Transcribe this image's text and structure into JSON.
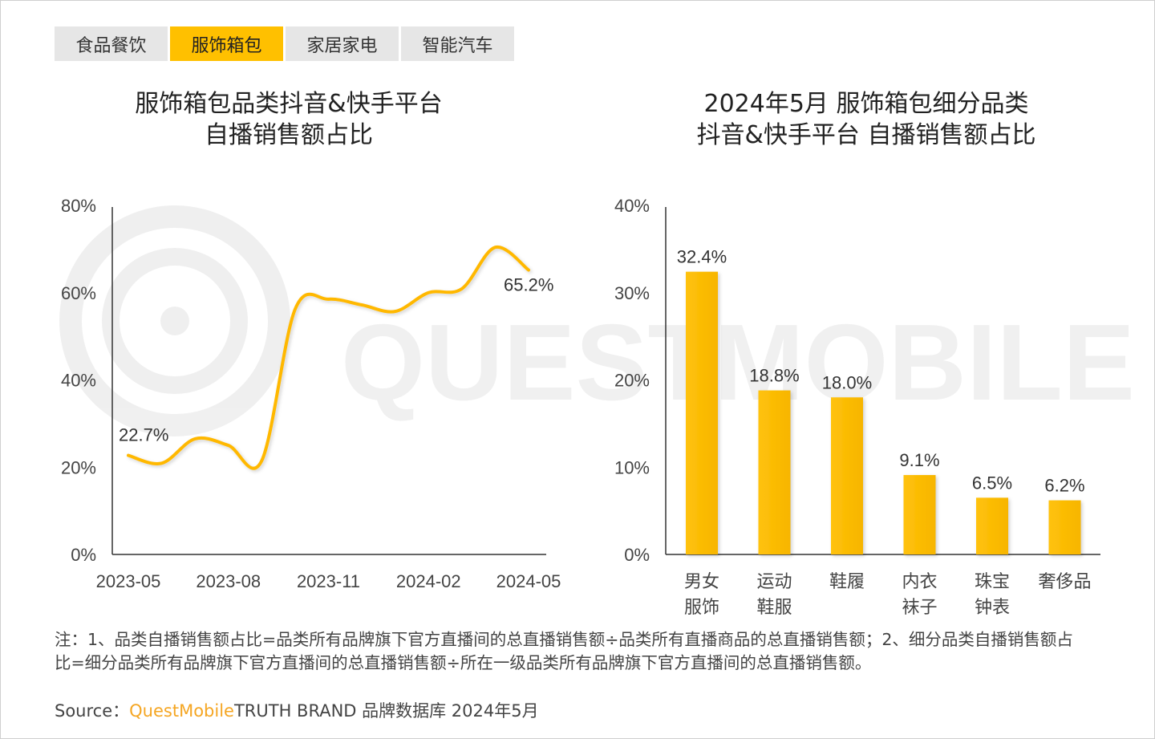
{
  "tabs": [
    {
      "label": "食品餐饮",
      "active": false
    },
    {
      "label": "服饰箱包",
      "active": true
    },
    {
      "label": "家居家电",
      "active": false
    },
    {
      "label": "智能汽车",
      "active": false
    }
  ],
  "colors": {
    "accent": "#ffc000",
    "tab_bg": "#e6e6e6",
    "line": "#ffb800",
    "brand": "#f5a623"
  },
  "watermark": "QUESTMOBILE",
  "chart_data": [
    {
      "type": "line",
      "title": "服饰箱包品类抖音&快手平台\n自播销售额占比",
      "title_lines": [
        "服饰箱包品类抖音&快手平台",
        "自播销售额占比"
      ],
      "x": [
        "2023-05",
        "2023-06",
        "2023-07",
        "2023-08",
        "2023-09",
        "2023-10",
        "2023-11",
        "2023-12",
        "2024-01",
        "2024-02",
        "2024-03",
        "2024-04",
        "2024-05"
      ],
      "x_tick_labels": [
        "2023-05",
        "2023-08",
        "2023-11",
        "2024-02",
        "2024-05"
      ],
      "series": [
        {
          "values": [
            22.7,
            20.9,
            26.5,
            25.0,
            21.5,
            56.2,
            58.5,
            57.2,
            55.7,
            60.0,
            60.9,
            70.4,
            65.2
          ]
        }
      ],
      "data_labels": [
        {
          "x": "2023-05",
          "label": "22.7%"
        },
        {
          "x": "2024-05",
          "label": "65.2%"
        }
      ],
      "ylim": [
        0,
        80
      ],
      "y_tick_labels": [
        "0%",
        "20%",
        "40%",
        "60%",
        "80%"
      ],
      "grid": false
    },
    {
      "type": "bar",
      "title_lines": [
        "2024年5月 服饰箱包细分品类",
        "抖音&快手平台 自播销售额占比"
      ],
      "categories": [
        [
          "男女",
          "服饰"
        ],
        [
          "运动",
          "鞋服"
        ],
        [
          "鞋履"
        ],
        [
          "内衣",
          "袜子"
        ],
        [
          "珠宝",
          "钟表"
        ],
        [
          "奢侈品"
        ]
      ],
      "values": [
        32.4,
        18.8,
        18.0,
        9.1,
        6.5,
        6.2
      ],
      "data_labels": [
        "32.4%",
        "18.8%",
        "18.0%",
        "9.1%",
        "6.5%",
        "6.2%"
      ],
      "ylim": [
        0,
        40
      ],
      "y_tick_labels": [
        "0%",
        "10%",
        "20%",
        "30%",
        "40%"
      ],
      "grid": false
    }
  ],
  "footnote": "注：1、品类自播销售额占比=品类所有品牌旗下官方直播间的总直播销售额÷品类所有直播商品的总直播销售额；2、细分品类自播销售额占比=细分品类所有品牌旗下官方直播间的总直播销售额÷所在一级品类所有品牌旗下官方直播间的总直播销售额。",
  "source": {
    "label": "Source：",
    "brand": "QuestMobile",
    "rest": "TRUTH BRAND 品牌数据库 2024年5月"
  }
}
